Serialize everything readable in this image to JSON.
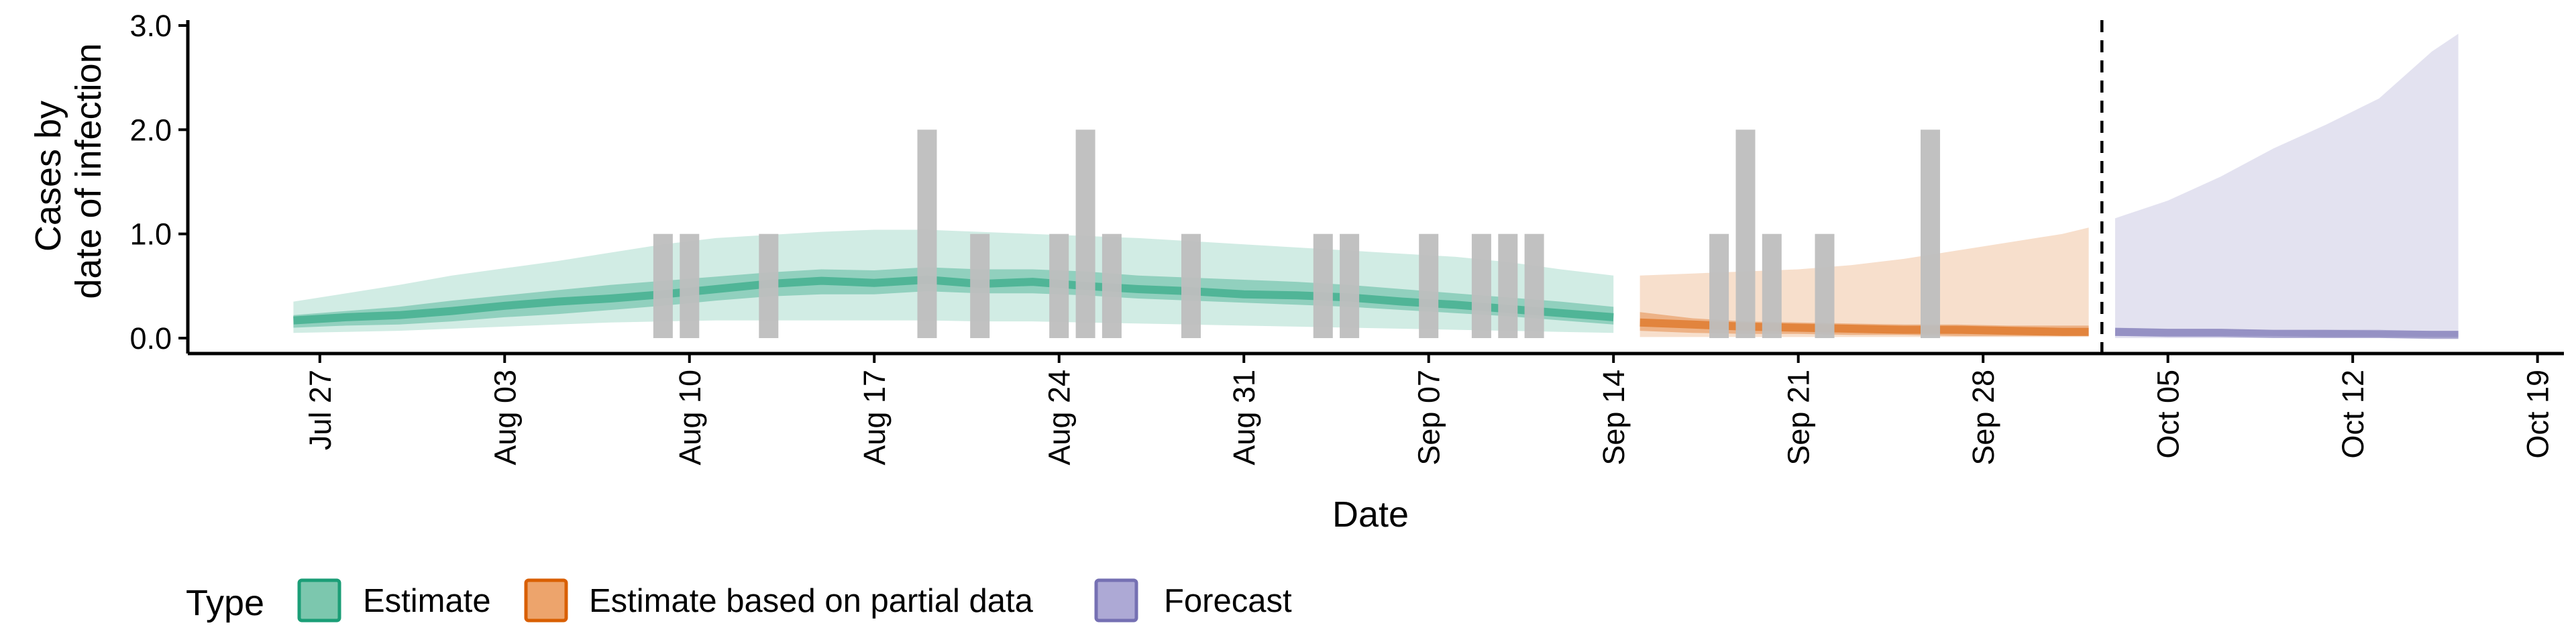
{
  "chart_data": {
    "type": "area",
    "xlabel": "Date",
    "ylabel_lines": [
      "Cases by",
      "date of infection"
    ],
    "x_range": [
      "2020-07-22",
      "2020-10-20"
    ],
    "ylim": [
      0,
      3.0
    ],
    "y_ticks": [
      {
        "value": 0,
        "label": "0.0"
      },
      {
        "value": 1,
        "label": "1.0"
      },
      {
        "value": 2,
        "label": "2.0"
      },
      {
        "value": 3,
        "label": "3.0"
      }
    ],
    "x_ticks": [
      {
        "date": "2020-07-27",
        "label": "Jul 27"
      },
      {
        "date": "2020-08-03",
        "label": "Aug 03"
      },
      {
        "date": "2020-08-10",
        "label": "Aug 10"
      },
      {
        "date": "2020-08-17",
        "label": "Aug 17"
      },
      {
        "date": "2020-08-24",
        "label": "Aug 24"
      },
      {
        "date": "2020-08-31",
        "label": "Aug 31"
      },
      {
        "date": "2020-09-07",
        "label": "Sep 07"
      },
      {
        "date": "2020-09-14",
        "label": "Sep 14"
      },
      {
        "date": "2020-09-21",
        "label": "Sep 21"
      },
      {
        "date": "2020-09-28",
        "label": "Sep 28"
      },
      {
        "date": "2020-10-05",
        "label": "Oct 05"
      },
      {
        "date": "2020-10-12",
        "label": "Oct 12"
      },
      {
        "date": "2020-10-19",
        "label": "Oct 19"
      }
    ],
    "forecast_start_date": "2020-10-03",
    "grid": false,
    "legend": {
      "title": "Type",
      "position": "bottom-left",
      "entries": [
        {
          "label": "Estimate",
          "fill": "#7CC7AE",
          "stroke": "#1B9E77"
        },
        {
          "label": "Estimate based on partial data",
          "fill": "#EDA46C",
          "stroke": "#D95F02"
        },
        {
          "label": "Forecast",
          "fill": "#ADA9D5",
          "stroke": "#7570B3"
        }
      ]
    },
    "observed_cases": {
      "color": "#BEBEBE",
      "points": [
        {
          "date": "2020-08-09",
          "value": 1
        },
        {
          "date": "2020-08-10",
          "value": 1
        },
        {
          "date": "2020-08-13",
          "value": 1
        },
        {
          "date": "2020-08-19",
          "value": 2
        },
        {
          "date": "2020-08-21",
          "value": 1
        },
        {
          "date": "2020-08-24",
          "value": 1
        },
        {
          "date": "2020-08-25",
          "value": 2
        },
        {
          "date": "2020-08-26",
          "value": 1
        },
        {
          "date": "2020-08-29",
          "value": 1
        },
        {
          "date": "2020-09-03",
          "value": 1
        },
        {
          "date": "2020-09-04",
          "value": 1
        },
        {
          "date": "2020-09-07",
          "value": 1
        },
        {
          "date": "2020-09-09",
          "value": 1
        },
        {
          "date": "2020-09-10",
          "value": 1
        },
        {
          "date": "2020-09-11",
          "value": 1
        },
        {
          "date": "2020-09-18",
          "value": 1
        },
        {
          "date": "2020-09-19",
          "value": 2
        },
        {
          "date": "2020-09-20",
          "value": 1
        },
        {
          "date": "2020-09-22",
          "value": 1
        },
        {
          "date": "2020-09-26",
          "value": 2
        }
      ]
    },
    "series": [
      {
        "type": "Estimate",
        "fill": "#1B9E77",
        "dates": [
          "2020-07-26",
          "2020-07-28",
          "2020-07-30",
          "2020-08-01",
          "2020-08-03",
          "2020-08-05",
          "2020-08-07",
          "2020-08-09",
          "2020-08-11",
          "2020-08-13",
          "2020-08-15",
          "2020-08-17",
          "2020-08-19",
          "2020-08-21",
          "2020-08-23",
          "2020-08-25",
          "2020-08-27",
          "2020-08-29",
          "2020-08-31",
          "2020-09-02",
          "2020-09-04",
          "2020-09-06",
          "2020-09-08",
          "2020-09-10",
          "2020-09-12",
          "2020-09-14"
        ],
        "median": [
          0.17,
          0.2,
          0.22,
          0.26,
          0.31,
          0.35,
          0.38,
          0.42,
          0.47,
          0.52,
          0.55,
          0.53,
          0.56,
          0.52,
          0.54,
          0.5,
          0.47,
          0.45,
          0.42,
          0.41,
          0.39,
          0.35,
          0.32,
          0.28,
          0.24,
          0.2
        ],
        "inner_lower": [
          0.1,
          0.12,
          0.13,
          0.16,
          0.2,
          0.23,
          0.27,
          0.31,
          0.36,
          0.4,
          0.42,
          0.42,
          0.45,
          0.43,
          0.43,
          0.41,
          0.38,
          0.36,
          0.34,
          0.32,
          0.3,
          0.27,
          0.24,
          0.21,
          0.17,
          0.13
        ],
        "inner_upper": [
          0.22,
          0.26,
          0.3,
          0.36,
          0.41,
          0.46,
          0.51,
          0.55,
          0.59,
          0.63,
          0.66,
          0.65,
          0.68,
          0.66,
          0.66,
          0.64,
          0.6,
          0.58,
          0.56,
          0.54,
          0.51,
          0.47,
          0.43,
          0.39,
          0.35,
          0.3
        ],
        "outer_lower": [
          0.05,
          0.06,
          0.07,
          0.09,
          0.11,
          0.13,
          0.15,
          0.16,
          0.17,
          0.17,
          0.17,
          0.17,
          0.17,
          0.16,
          0.16,
          0.15,
          0.14,
          0.13,
          0.12,
          0.11,
          0.1,
          0.09,
          0.08,
          0.07,
          0.06,
          0.05
        ],
        "outer_upper": [
          0.35,
          0.43,
          0.51,
          0.6,
          0.67,
          0.74,
          0.82,
          0.9,
          0.96,
          0.99,
          1.02,
          1.04,
          1.04,
          1.02,
          1.0,
          0.98,
          0.96,
          0.93,
          0.9,
          0.87,
          0.84,
          0.81,
          0.78,
          0.73,
          0.66,
          0.6
        ]
      },
      {
        "type": "Estimate based on partial data",
        "fill": "#D95F02",
        "dates": [
          "2020-09-15",
          "2020-09-17",
          "2020-09-19",
          "2020-09-21",
          "2020-09-23",
          "2020-09-25",
          "2020-09-27",
          "2020-09-29",
          "2020-10-01",
          "2020-10-02"
        ],
        "median": [
          0.15,
          0.13,
          0.11,
          0.1,
          0.09,
          0.08,
          0.08,
          0.07,
          0.06,
          0.06
        ],
        "inner_lower": [
          0.07,
          0.05,
          0.04,
          0.04,
          0.03,
          0.03,
          0.02,
          0.02,
          0.02,
          0.02
        ],
        "inner_upper": [
          0.25,
          0.19,
          0.16,
          0.15,
          0.14,
          0.13,
          0.13,
          0.12,
          0.12,
          0.12
        ],
        "outer_lower": [
          0.01,
          0.01,
          0.01,
          0.01,
          0.01,
          0.01,
          0.01,
          0.01,
          0.01,
          0.01
        ],
        "outer_upper": [
          0.6,
          0.62,
          0.64,
          0.66,
          0.7,
          0.76,
          0.84,
          0.92,
          1.0,
          1.06
        ]
      },
      {
        "type": "Forecast",
        "fill": "#7570B3",
        "dates": [
          "2020-10-03",
          "2020-10-05",
          "2020-10-07",
          "2020-10-09",
          "2020-10-11",
          "2020-10-13",
          "2020-10-15",
          "2020-10-16"
        ],
        "median": [
          0.06,
          0.05,
          0.05,
          0.04,
          0.04,
          0.04,
          0.03,
          0.03
        ],
        "inner_lower": [
          0.02,
          0.02,
          0.02,
          0.02,
          0.01,
          0.01,
          0.01,
          0.01
        ],
        "inner_upper": [
          0.1,
          0.09,
          0.09,
          0.08,
          0.08,
          0.07,
          0.07,
          0.07
        ],
        "outer_lower": [
          0.0,
          0.0,
          0.0,
          0.0,
          0.0,
          0.0,
          0.0,
          0.0
        ],
        "outer_upper": [
          1.15,
          1.32,
          1.55,
          1.82,
          2.05,
          2.3,
          2.75,
          2.92
        ]
      }
    ]
  }
}
